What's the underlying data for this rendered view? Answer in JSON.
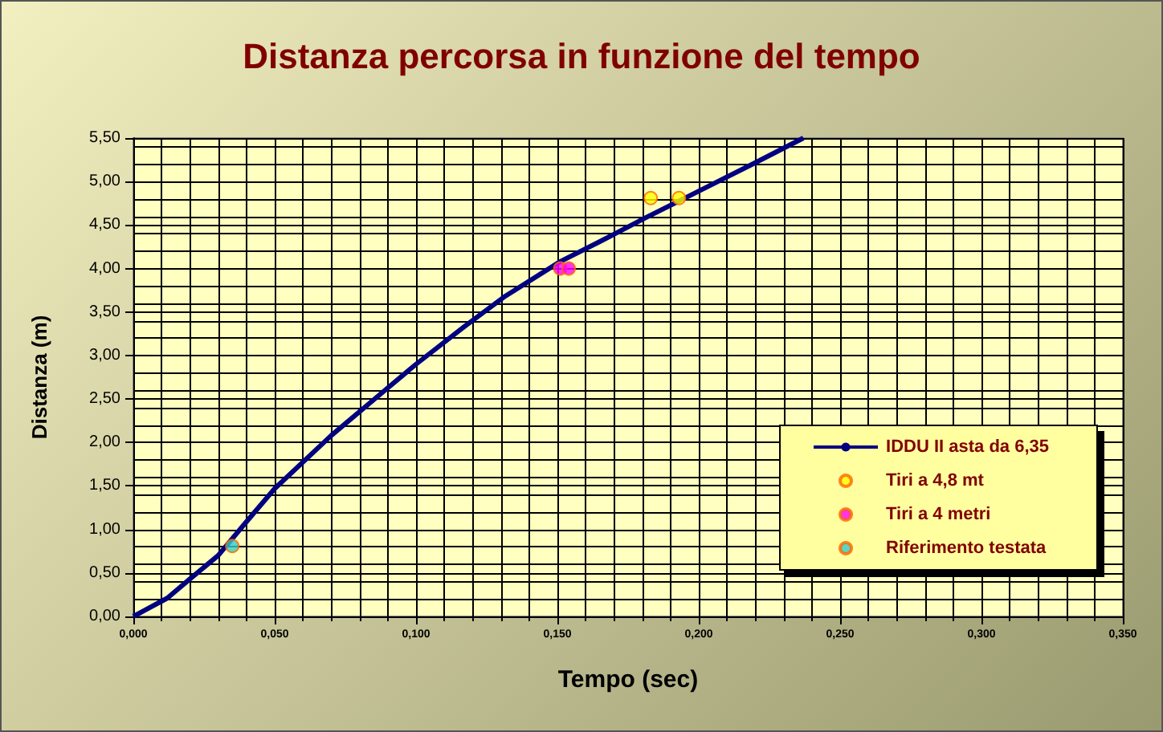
{
  "chart_data": {
    "type": "line",
    "title": "Distanza percorsa in funzione del tempo",
    "xlabel": "Tempo (sec)",
    "ylabel": "Distanza (m)",
    "xlim": [
      0,
      0.35
    ],
    "ylim": [
      0,
      5.5
    ],
    "xticks": [
      {
        "value": 0,
        "label": "0,000"
      },
      {
        "value": 0.05,
        "label": "0,050"
      },
      {
        "value": 0.1,
        "label": "0,100"
      },
      {
        "value": 0.15,
        "label": "0,150"
      },
      {
        "value": 0.2,
        "label": "0,200"
      },
      {
        "value": 0.25,
        "label": "0,250"
      },
      {
        "value": 0.3,
        "label": "0,300"
      },
      {
        "value": 0.35,
        "label": "0,350"
      }
    ],
    "yticks": [
      {
        "value": 0,
        "label": "0,00"
      },
      {
        "value": 0.5,
        "label": "0,50"
      },
      {
        "value": 1,
        "label": "1,00"
      },
      {
        "value": 1.5,
        "label": "1,50"
      },
      {
        "value": 2,
        "label": "2,00"
      },
      {
        "value": 2.5,
        "label": "2,50"
      },
      {
        "value": 3,
        "label": "3,00"
      },
      {
        "value": 3.5,
        "label": "3,50"
      },
      {
        "value": 4,
        "label": "4,00"
      },
      {
        "value": 4.5,
        "label": "4,50"
      },
      {
        "value": 5,
        "label": "5,00"
      },
      {
        "value": 5.5,
        "label": "5,50"
      }
    ],
    "grid": true,
    "legend": "bottom right",
    "series": [
      {
        "name": "IDDU II asta da 6,35",
        "color": "#000080",
        "marker": "none",
        "x": [
          0,
          0.012,
          0.02,
          0.03,
          0.039,
          0.05,
          0.07,
          0.089,
          0.1,
          0.117,
          0.131,
          0.151,
          0.165,
          0.181,
          0.2,
          0.219,
          0.237
        ],
        "values": [
          0,
          0.21,
          0.43,
          0.7,
          1.05,
          1.47,
          2.08,
          2.6,
          2.9,
          3.33,
          3.67,
          4.08,
          4.31,
          4.58,
          4.89,
          5.2,
          5.5
        ]
      },
      {
        "name": "Tiri a 4,8 mt",
        "type": "scatter",
        "color": "#ffff00",
        "marker": "circle",
        "x": [
          0.183,
          0.193
        ],
        "values": [
          4.81,
          4.81
        ]
      },
      {
        "name": "Tiri a 4 metri",
        "type": "scatter",
        "color": "#ff00ff",
        "marker": "circle",
        "x": [
          0.151,
          0.154
        ],
        "values": [
          4,
          4
        ]
      },
      {
        "name": "Riferimento testata",
        "type": "scatter",
        "color": "#33cccc",
        "marker": "circle",
        "x": [
          0.035
        ],
        "values": [
          0.81
        ]
      }
    ]
  }
}
